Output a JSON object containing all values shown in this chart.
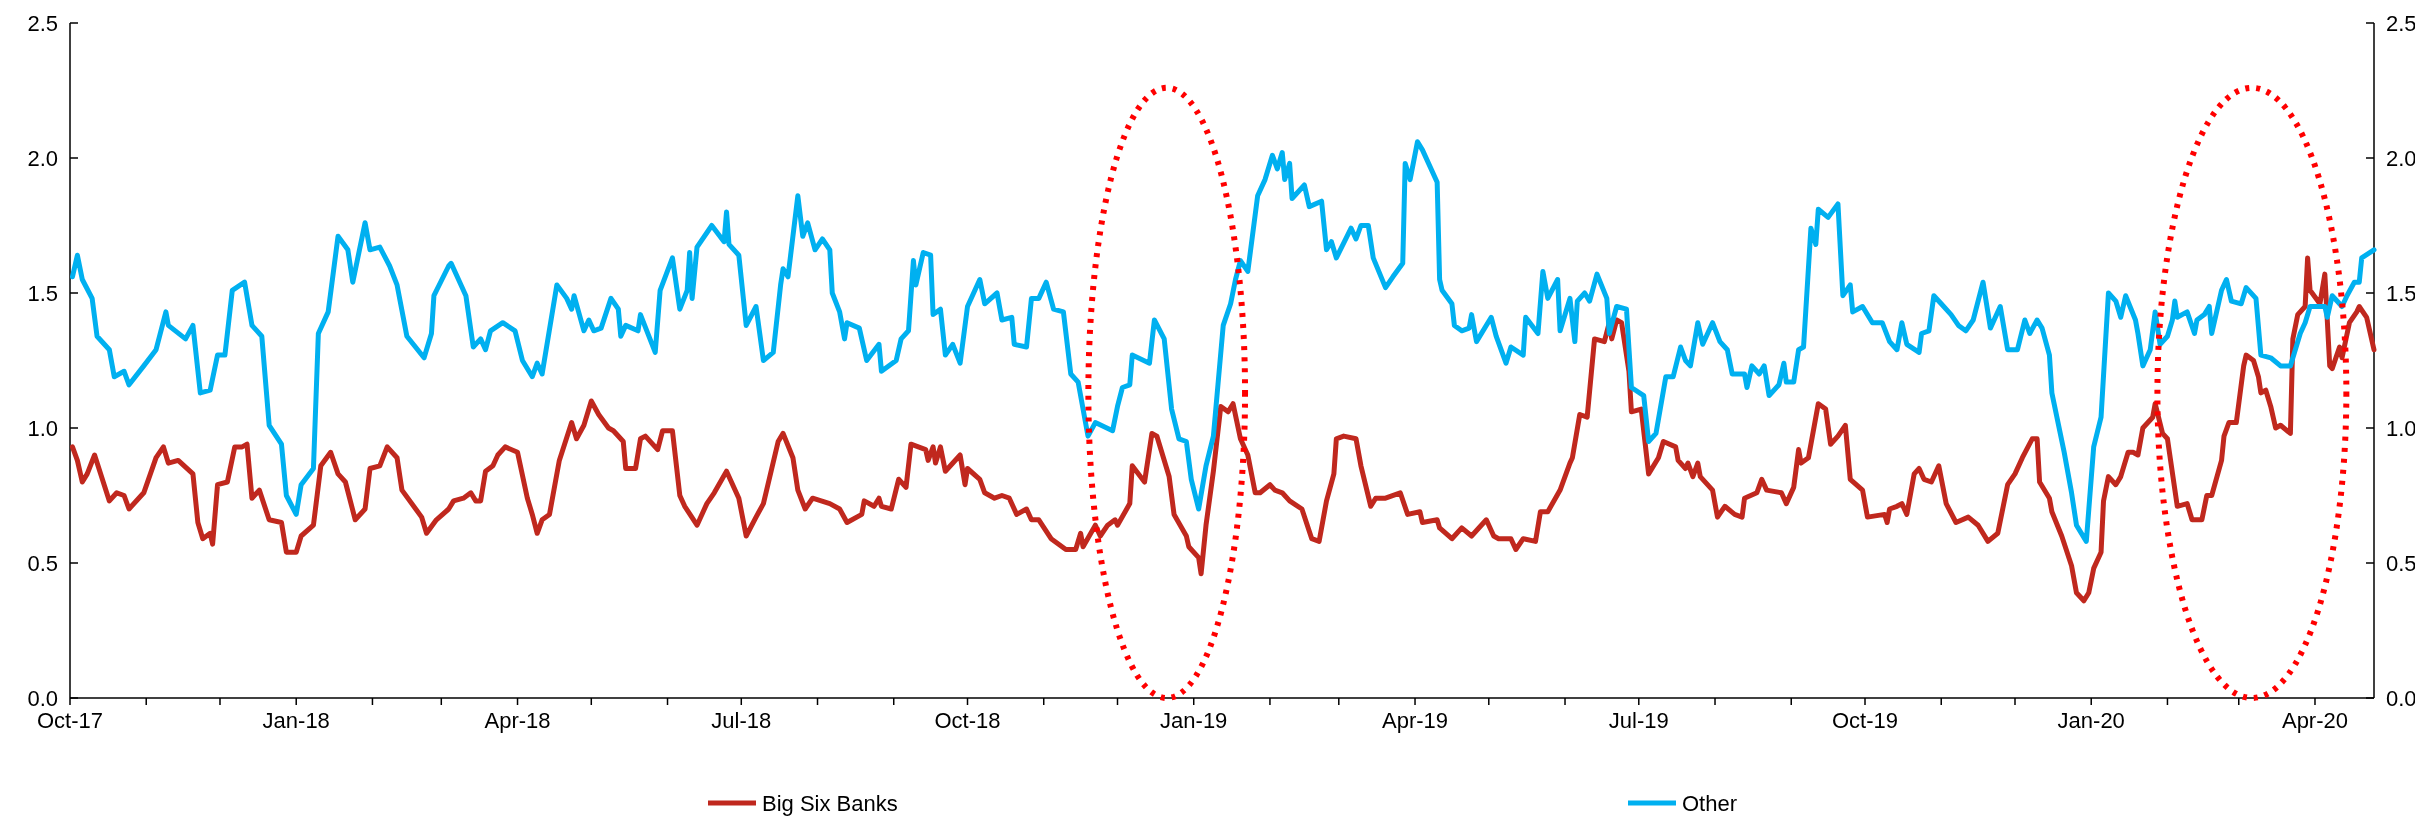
{
  "chart_data": {
    "type": "line",
    "legend": "bottom",
    "xlim": [
      "2017-10-01",
      "2020-04-25"
    ],
    "xticks": [
      {
        "value": "2017-10-01",
        "label": "Oct-17"
      },
      {
        "value": "2017-11-01",
        "label": null
      },
      {
        "value": "2017-12-01",
        "label": null
      },
      {
        "value": "2018-01-01",
        "label": "Jan-18"
      },
      {
        "value": "2018-02-01",
        "label": null
      },
      {
        "value": "2018-03-01",
        "label": null
      },
      {
        "value": "2018-04-01",
        "label": "Apr-18"
      },
      {
        "value": "2018-05-01",
        "label": null
      },
      {
        "value": "2018-06-01",
        "label": null
      },
      {
        "value": "2018-07-01",
        "label": "Jul-18"
      },
      {
        "value": "2018-08-01",
        "label": null
      },
      {
        "value": "2018-09-01",
        "label": null
      },
      {
        "value": "2018-10-01",
        "label": "Oct-18"
      },
      {
        "value": "2018-11-01",
        "label": null
      },
      {
        "value": "2018-12-01",
        "label": null
      },
      {
        "value": "2019-01-01",
        "label": "Jan-19"
      },
      {
        "value": "2019-02-01",
        "label": null
      },
      {
        "value": "2019-03-01",
        "label": null
      },
      {
        "value": "2019-04-01",
        "label": "Apr-19"
      },
      {
        "value": "2019-05-01",
        "label": null
      },
      {
        "value": "2019-06-01",
        "label": null
      },
      {
        "value": "2019-07-01",
        "label": "Jul-19"
      },
      {
        "value": "2019-08-01",
        "label": null
      },
      {
        "value": "2019-09-01",
        "label": null
      },
      {
        "value": "2019-10-01",
        "label": "Oct-19"
      },
      {
        "value": "2019-11-01",
        "label": null
      },
      {
        "value": "2019-12-01",
        "label": null
      },
      {
        "value": "2020-01-01",
        "label": "Jan-20"
      },
      {
        "value": "2020-02-01",
        "label": null
      },
      {
        "value": "2020-03-01",
        "label": null
      },
      {
        "value": "2020-04-01",
        "label": "Apr-20"
      }
    ],
    "ylim": [
      0,
      2.5
    ],
    "yticks": [
      {
        "value": 0,
        "label": "0.0"
      },
      {
        "value": 0.5,
        "label": "0.5"
      },
      {
        "value": 1,
        "label": "1.0"
      },
      {
        "value": 1.5,
        "label": "1.5"
      },
      {
        "value": 2,
        "label": "2.0"
      },
      {
        "value": 2.5,
        "label": "2.5"
      }
    ],
    "y2lim": [
      0,
      2.5
    ],
    "y2ticks": [
      {
        "value": 0,
        "label": "0.0"
      },
      {
        "value": 0.5,
        "label": "0.5"
      },
      {
        "value": 1,
        "label": "1.0"
      },
      {
        "value": 1.5,
        "label": "1.5"
      },
      {
        "value": 2,
        "label": "2.0"
      },
      {
        "value": 2.5,
        "label": "2.5"
      }
    ],
    "series": [
      {
        "name": "Big Six Banks",
        "color": "#c0281e",
        "x": [
          "2017-10-02",
          "2017-10-04",
          "2017-10-06",
          "2017-10-08",
          "2017-10-11",
          "2017-10-17",
          "2017-10-20",
          "2017-10-23",
          "2017-10-25",
          "2017-10-31",
          "2017-11-05",
          "2017-11-08",
          "2017-11-10",
          "2017-11-14",
          "2017-11-20",
          "2017-11-22",
          "2017-11-24",
          "2017-11-27",
          "2017-11-28",
          "2017-11-30",
          "2017-12-04",
          "2017-12-07",
          "2017-12-10",
          "2017-12-12",
          "2017-12-14",
          "2017-12-17",
          "2017-12-21",
          "2017-12-26",
          "2017-12-28",
          "2018-01-01",
          "2018-01-03",
          "2018-01-08",
          "2018-01-11",
          "2018-01-15",
          "2018-01-18",
          "2018-01-21",
          "2018-01-25",
          "2018-01-29",
          "2018-01-31",
          "2018-02-04",
          "2018-02-07",
          "2018-02-11",
          "2018-02-13",
          "2018-02-21",
          "2018-02-23",
          "2018-02-27",
          "2018-03-04",
          "2018-03-06",
          "2018-03-10",
          "2018-03-13",
          "2018-03-15",
          "2018-03-17",
          "2018-03-19",
          "2018-03-22",
          "2018-03-24",
          "2018-03-27",
          "2018-04-01",
          "2018-04-05",
          "2018-04-07",
          "2018-04-09",
          "2018-04-11",
          "2018-04-14",
          "2018-04-18",
          "2018-04-23",
          "2018-04-25",
          "2018-04-28",
          "2018-05-01",
          "2018-05-04",
          "2018-05-08",
          "2018-05-10",
          "2018-05-14",
          "2018-05-15",
          "2018-05-19",
          "2018-05-21",
          "2018-05-23",
          "2018-05-28",
          "2018-05-30",
          "2018-06-03",
          "2018-06-06",
          "2018-06-08",
          "2018-06-13",
          "2018-06-17",
          "2018-06-20",
          "2018-06-25",
          "2018-06-30",
          "2018-07-03",
          "2018-07-07",
          "2018-07-10",
          "2018-07-16",
          "2018-07-18",
          "2018-07-22",
          "2018-07-24",
          "2018-07-27",
          "2018-07-30",
          "2018-08-06",
          "2018-08-10",
          "2018-08-13",
          "2018-08-19",
          "2018-08-20",
          "2018-08-24",
          "2018-08-26",
          "2018-08-27",
          "2018-08-31",
          "2018-09-03",
          "2018-09-06",
          "2018-09-08",
          "2018-09-14",
          "2018-09-15",
          "2018-09-17",
          "2018-09-18",
          "2018-09-20",
          "2018-09-22",
          "2018-09-28",
          "2018-09-30",
          "2018-10-01",
          "2018-10-06",
          "2018-10-08",
          "2018-10-12",
          "2018-10-15",
          "2018-10-18",
          "2018-10-21",
          "2018-10-25",
          "2018-10-27",
          "2018-10-30",
          "2018-11-04",
          "2018-11-10",
          "2018-11-14",
          "2018-11-16",
          "2018-11-17",
          "2018-11-22",
          "2018-11-24",
          "2018-11-27",
          "2018-11-30",
          "2018-12-01",
          "2018-12-06",
          "2018-12-07",
          "2018-12-12",
          "2018-12-15",
          "2018-12-17",
          "2018-12-22",
          "2018-12-24",
          "2018-12-29",
          "2018-12-30",
          "2019-01-03",
          "2019-01-04",
          "2019-01-06",
          "2019-01-09",
          "2019-01-12",
          "2019-01-15",
          "2019-01-17",
          "2019-01-20",
          "2019-01-23",
          "2019-01-26",
          "2019-01-28",
          "2019-02-01",
          "2019-02-03",
          "2019-02-06",
          "2019-02-09",
          "2019-02-14",
          "2019-02-18",
          "2019-02-21",
          "2019-02-24",
          "2019-02-27",
          "2019-02-28",
          "2019-03-03",
          "2019-03-08",
          "2019-03-10",
          "2019-03-14",
          "2019-03-16",
          "2019-03-20",
          "2019-03-26",
          "2019-03-29",
          "2019-04-03",
          "2019-04-04",
          "2019-04-10",
          "2019-04-11",
          "2019-04-16",
          "2019-04-20",
          "2019-04-24",
          "2019-04-30",
          "2019-05-03",
          "2019-05-05",
          "2019-05-10",
          "2019-05-12",
          "2019-05-15",
          "2019-05-20",
          "2019-05-22",
          "2019-05-25",
          "2019-05-30",
          "2019-06-03",
          "2019-06-04",
          "2019-06-07",
          "2019-06-10",
          "2019-06-13",
          "2019-06-17",
          "2019-06-19",
          "2019-06-20",
          "2019-06-22",
          "2019-06-24",
          "2019-06-27",
          "2019-06-28",
          "2019-07-02",
          "2019-07-05",
          "2019-07-09",
          "2019-07-11",
          "2019-07-16",
          "2019-07-17",
          "2019-07-20",
          "2019-07-21",
          "2019-07-23",
          "2019-07-25",
          "2019-07-26",
          "2019-07-31",
          "2019-08-02",
          "2019-08-05",
          "2019-08-09",
          "2019-08-12",
          "2019-08-13",
          "2019-08-18",
          "2019-08-20",
          "2019-08-22",
          "2019-08-28",
          "2019-08-30",
          "2019-09-02",
          "2019-09-04",
          "2019-09-05",
          "2019-09-08",
          "2019-09-12",
          "2019-09-15",
          "2019-09-17",
          "2019-09-20",
          "2019-09-23",
          "2019-09-25",
          "2019-09-30",
          "2019-10-02",
          "2019-10-09",
          "2019-10-10",
          "2019-10-11",
          "2019-10-14",
          "2019-10-16",
          "2019-10-18",
          "2019-10-21",
          "2019-10-23",
          "2019-10-25",
          "2019-10-28",
          "2019-10-31",
          "2019-11-03",
          "2019-11-07",
          "2019-11-12",
          "2019-11-16",
          "2019-11-20",
          "2019-11-24",
          "2019-11-28",
          "2019-12-01",
          "2019-12-04",
          "2019-12-08",
          "2019-12-10",
          "2019-12-11",
          "2019-12-15",
          "2019-12-16",
          "2019-12-20",
          "2019-12-24",
          "2019-12-26",
          "2019-12-29",
          "2019-12-31",
          "2020-01-02",
          "2020-01-05",
          "2020-01-06",
          "2020-01-08",
          "2020-01-11",
          "2020-01-13",
          "2020-01-16",
          "2020-01-18",
          "2020-01-20",
          "2020-01-22",
          "2020-01-26",
          "2020-01-27",
          "2020-01-30",
          "2020-02-01",
          "2020-02-05",
          "2020-02-09",
          "2020-02-11",
          "2020-02-15",
          "2020-02-17",
          "2020-02-19",
          "2020-02-23",
          "2020-02-24",
          "2020-02-26",
          "2020-02-29",
          "2020-03-03",
          "2020-03-04",
          "2020-03-07",
          "2020-03-09",
          "2020-03-10",
          "2020-03-12",
          "2020-03-14",
          "2020-03-16",
          "2020-03-18",
          "2020-03-22",
          "2020-03-23",
          "2020-03-25",
          "2020-03-28",
          "2020-03-29",
          "2020-03-30",
          "2020-04-03",
          "2020-04-05",
          "2020-04-07",
          "2020-04-08",
          "2020-04-11",
          "2020-04-12",
          "2020-04-15",
          "2020-04-18",
          "2020-04-19",
          "2020-04-22",
          "2020-04-25"
        ],
        "values": [
          0.93,
          0.88,
          0.8,
          0.83,
          0.9,
          0.73,
          0.76,
          0.75,
          0.7,
          0.76,
          0.89,
          0.93,
          0.87,
          0.88,
          0.83,
          0.65,
          0.59,
          0.61,
          0.57,
          0.79,
          0.8,
          0.93,
          0.93,
          0.94,
          0.74,
          0.77,
          0.66,
          0.65,
          0.54,
          0.54,
          0.6,
          0.64,
          0.86,
          0.91,
          0.83,
          0.8,
          0.66,
          0.7,
          0.85,
          0.86,
          0.93,
          0.89,
          0.77,
          0.67,
          0.61,
          0.66,
          0.7,
          0.73,
          0.74,
          0.76,
          0.73,
          0.73,
          0.84,
          0.86,
          0.9,
          0.93,
          0.91,
          0.74,
          0.68,
          0.61,
          0.66,
          0.68,
          0.88,
          1.02,
          0.96,
          1.01,
          1.1,
          1.05,
          1.0,
          0.99,
          0.95,
          0.85,
          0.85,
          0.96,
          0.97,
          0.92,
          0.99,
          0.99,
          0.75,
          0.71,
          0.64,
          0.72,
          0.76,
          0.84,
          0.74,
          0.6,
          0.67,
          0.72,
          0.95,
          0.98,
          0.89,
          0.77,
          0.7,
          0.74,
          0.72,
          0.7,
          0.65,
          0.68,
          0.73,
          0.71,
          0.74,
          0.71,
          0.7,
          0.81,
          0.78,
          0.94,
          0.92,
          0.88,
          0.93,
          0.87,
          0.93,
          0.84,
          0.9,
          0.79,
          0.85,
          0.81,
          0.76,
          0.74,
          0.75,
          0.74,
          0.68,
          0.7,
          0.66,
          0.66,
          0.59,
          0.55,
          0.55,
          0.61,
          0.56,
          0.64,
          0.6,
          0.64,
          0.66,
          0.64,
          0.72,
          0.86,
          0.8,
          0.98,
          0.97,
          0.82,
          0.68,
          0.6,
          0.56,
          0.52,
          0.46,
          0.64,
          0.84,
          1.08,
          1.06,
          1.09,
          0.96,
          0.9,
          0.76,
          0.76,
          0.79,
          0.77,
          0.76,
          0.73,
          0.7,
          0.59,
          0.58,
          0.73,
          0.83,
          0.96,
          0.97,
          0.96,
          0.86,
          0.71,
          0.74,
          0.74,
          0.76,
          0.68,
          0.69,
          0.65,
          0.66,
          0.63,
          0.59,
          0.63,
          0.6,
          0.66,
          0.6,
          0.59,
          0.59,
          0.55,
          0.59,
          0.58,
          0.69,
          0.69,
          0.77,
          0.87,
          0.89,
          1.05,
          1.04,
          1.33,
          1.32,
          1.39,
          1.33,
          1.4,
          1.39,
          1.21,
          1.06,
          1.07,
          0.83,
          0.89,
          0.95,
          0.93,
          0.88,
          0.85,
          0.87,
          0.82,
          0.87,
          0.82,
          0.77,
          0.67,
          0.71,
          0.68,
          0.67,
          0.74,
          0.76,
          0.81,
          0.77,
          0.76,
          0.72,
          0.78,
          0.92,
          0.87,
          0.89,
          1.09,
          1.07,
          0.94,
          0.97,
          1.01,
          0.81,
          0.77,
          0.67,
          0.68,
          0.65,
          0.7,
          0.71,
          0.72,
          0.68,
          0.83,
          0.85,
          0.81,
          0.8,
          0.86,
          0.72,
          0.65,
          0.67,
          0.64,
          0.58,
          0.61,
          0.79,
          0.83,
          0.89,
          0.96,
          0.96,
          0.8,
          0.74,
          0.69,
          0.6,
          0.49,
          0.39,
          0.36,
          0.39,
          0.48,
          0.54,
          0.73,
          0.82,
          0.79,
          0.82,
          0.91,
          0.91,
          0.9,
          1.0,
          1.04,
          1.09,
          0.98,
          0.96,
          0.71,
          0.72,
          0.66,
          0.66,
          0.75,
          0.75,
          0.88,
          0.97,
          1.02,
          1.02,
          1.23,
          1.27,
          1.25,
          1.19,
          1.13,
          1.14,
          1.08,
          1.0,
          1.01,
          0.98,
          1.33,
          1.42,
          1.45,
          1.63,
          1.51,
          1.46,
          1.57,
          1.23,
          1.22,
          1.3,
          1.26,
          1.39,
          1.43,
          1.45,
          1.41,
          1.29
        ]
      },
      {
        "name": "Other",
        "color": "#00b0f0",
        "x": [
          "2017-10-02",
          "2017-10-04",
          "2017-10-06",
          "2017-10-10",
          "2017-10-12",
          "2017-10-17",
          "2017-10-19",
          "2017-10-23",
          "2017-10-25",
          "2017-10-31",
          "2017-11-05",
          "2017-11-09",
          "2017-11-10",
          "2017-11-17",
          "2017-11-20",
          "2017-11-23",
          "2017-11-27",
          "2017-11-30",
          "2017-12-03",
          "2017-12-06",
          "2017-12-11",
          "2017-12-14",
          "2017-12-18",
          "2017-12-21",
          "2017-12-26",
          "2017-12-28",
          "2018-01-01",
          "2018-01-03",
          "2018-01-08",
          "2018-01-10",
          "2018-01-14",
          "2018-01-18",
          "2018-01-22",
          "2018-01-24",
          "2018-01-29",
          "2018-01-31",
          "2018-02-04",
          "2018-02-08",
          "2018-02-11",
          "2018-02-15",
          "2018-02-22",
          "2018-02-25",
          "2018-02-26",
          "2018-03-04",
          "2018-03-05",
          "2018-03-11",
          "2018-03-14",
          "2018-03-17",
          "2018-03-19",
          "2018-03-21",
          "2018-03-26",
          "2018-03-31",
          "2018-04-03",
          "2018-04-07",
          "2018-04-09",
          "2018-04-11",
          "2018-04-17",
          "2018-04-21",
          "2018-04-23",
          "2018-04-24",
          "2018-04-28",
          "2018-04-30",
          "2018-05-02",
          "2018-05-05",
          "2018-05-09",
          "2018-05-12",
          "2018-05-13",
          "2018-05-15",
          "2018-05-20",
          "2018-05-21",
          "2018-05-27",
          "2018-05-29",
          "2018-06-03",
          "2018-06-06",
          "2018-06-09",
          "2018-06-10",
          "2018-06-11",
          "2018-06-13",
          "2018-06-19",
          "2018-06-24",
          "2018-06-25",
          "2018-06-26",
          "2018-06-30",
          "2018-07-03",
          "2018-07-07",
          "2018-07-10",
          "2018-07-14",
          "2018-07-17",
          "2018-07-18",
          "2018-07-20",
          "2018-07-24",
          "2018-07-26",
          "2018-07-28",
          "2018-07-31",
          "2018-08-03",
          "2018-08-06",
          "2018-08-07",
          "2018-08-10",
          "2018-08-12",
          "2018-08-13",
          "2018-08-18",
          "2018-08-21",
          "2018-08-26",
          "2018-08-27",
          "2018-09-02",
          "2018-09-04",
          "2018-09-07",
          "2018-09-09",
          "2018-09-10",
          "2018-09-13",
          "2018-09-16",
          "2018-09-17",
          "2018-09-20",
          "2018-09-22",
          "2018-09-25",
          "2018-09-28",
          "2018-10-01",
          "2018-10-06",
          "2018-10-08",
          "2018-10-13",
          "2018-10-15",
          "2018-10-19",
          "2018-10-20",
          "2018-10-25",
          "2018-10-27",
          "2018-10-30",
          "2018-11-02",
          "2018-11-05",
          "2018-11-09",
          "2018-11-12",
          "2018-11-15",
          "2018-11-19",
          "2018-11-22",
          "2018-11-29",
          "2018-12-01",
          "2018-12-03",
          "2018-12-06",
          "2018-12-07",
          "2018-12-14",
          "2018-12-16",
          "2018-12-20",
          "2018-12-23",
          "2018-12-26",
          "2018-12-29",
          "2018-12-31",
          "2019-01-03",
          "2019-01-06",
          "2019-01-09",
          "2019-01-13",
          "2019-01-16",
          "2019-01-18",
          "2019-01-20",
          "2019-01-23",
          "2019-01-27",
          "2019-01-30",
          "2019-02-02",
          "2019-02-04",
          "2019-02-06",
          "2019-02-07",
          "2019-02-09",
          "2019-02-10",
          "2019-02-15",
          "2019-02-17",
          "2019-02-22",
          "2019-02-24",
          "2019-02-26",
          "2019-02-28",
          "2019-03-06",
          "2019-03-08",
          "2019-03-10",
          "2019-03-13",
          "2019-03-15",
          "2019-03-20",
          "2019-03-23",
          "2019-03-27",
          "2019-03-28",
          "2019-03-30",
          "2019-04-02",
          "2019-04-04",
          "2019-04-10",
          "2019-04-11",
          "2019-04-12",
          "2019-04-16",
          "2019-04-17",
          "2019-04-20",
          "2019-04-23",
          "2019-04-24",
          "2019-04-26",
          "2019-05-02",
          "2019-05-04",
          "2019-05-08",
          "2019-05-10",
          "2019-05-15",
          "2019-05-16",
          "2019-05-21",
          "2019-05-23",
          "2019-05-25",
          "2019-05-29",
          "2019-05-30",
          "2019-06-03",
          "2019-06-05",
          "2019-06-06",
          "2019-06-09",
          "2019-06-11",
          "2019-06-14",
          "2019-06-18",
          "2019-06-19",
          "2019-06-22",
          "2019-06-26",
          "2019-06-28",
          "2019-07-03",
          "2019-07-05",
          "2019-07-08",
          "2019-07-12",
          "2019-07-15",
          "2019-07-18",
          "2019-07-20",
          "2019-07-22",
          "2019-07-25",
          "2019-07-27",
          "2019-07-31",
          "2019-08-03",
          "2019-08-06",
          "2019-08-08",
          "2019-08-13",
          "2019-08-14",
          "2019-08-16",
          "2019-08-19",
          "2019-08-21",
          "2019-08-23",
          "2019-08-27",
          "2019-08-29",
          "2019-08-30",
          "2019-09-02",
          "2019-09-04",
          "2019-09-06",
          "2019-09-09",
          "2019-09-11",
          "2019-09-12",
          "2019-09-16",
          "2019-09-20",
          "2019-09-22",
          "2019-09-25",
          "2019-09-26",
          "2019-09-30",
          "2019-10-04",
          "2019-10-08",
          "2019-10-11",
          "2019-10-14",
          "2019-10-16",
          "2019-10-18",
          "2019-10-23",
          "2019-10-24",
          "2019-10-27",
          "2019-10-29",
          "2019-11-01",
          "2019-11-05",
          "2019-11-08",
          "2019-11-11",
          "2019-11-14",
          "2019-11-18",
          "2019-11-21",
          "2019-11-25",
          "2019-11-28",
          "2019-12-02",
          "2019-12-05",
          "2019-12-07",
          "2019-12-10",
          "2019-12-12",
          "2019-12-15",
          "2019-12-16",
          "2019-12-21",
          "2019-12-24",
          "2019-12-26",
          "2019-12-30",
          "2020-01-02",
          "2020-01-05",
          "2020-01-08",
          "2020-01-11",
          "2020-01-13",
          "2020-01-15",
          "2020-01-19",
          "2020-01-20",
          "2020-01-22",
          "2020-01-25",
          "2020-01-27",
          "2020-01-29",
          "2020-02-01",
          "2020-02-03",
          "2020-02-04",
          "2020-02-05",
          "2020-02-09",
          "2020-02-12",
          "2020-02-13",
          "2020-02-16",
          "2020-02-18",
          "2020-02-19",
          "2020-02-23",
          "2020-02-25",
          "2020-02-27",
          "2020-03-02",
          "2020-03-04",
          "2020-03-08",
          "2020-03-10",
          "2020-03-14",
          "2020-03-18",
          "2020-03-22",
          "2020-03-26",
          "2020-03-28",
          "2020-03-30",
          "2020-04-05",
          "2020-04-06",
          "2020-04-08",
          "2020-04-11",
          "2020-04-12",
          "2020-04-14",
          "2020-04-17",
          "2020-04-19",
          "2020-04-20",
          "2020-04-25"
        ],
        "values": [
          1.56,
          1.64,
          1.55,
          1.48,
          1.34,
          1.29,
          1.19,
          1.21,
          1.16,
          1.23,
          1.29,
          1.43,
          1.38,
          1.33,
          1.38,
          1.13,
          1.14,
          1.27,
          1.27,
          1.51,
          1.54,
          1.38,
          1.34,
          1.01,
          0.94,
          0.75,
          0.68,
          0.79,
          0.85,
          1.35,
          1.43,
          1.71,
          1.66,
          1.54,
          1.76,
          1.66,
          1.67,
          1.6,
          1.53,
          1.34,
          1.26,
          1.35,
          1.49,
          1.6,
          1.61,
          1.49,
          1.3,
          1.33,
          1.29,
          1.36,
          1.39,
          1.36,
          1.25,
          1.19,
          1.24,
          1.2,
          1.53,
          1.48,
          1.44,
          1.49,
          1.36,
          1.4,
          1.36,
          1.37,
          1.48,
          1.44,
          1.34,
          1.38,
          1.36,
          1.42,
          1.28,
          1.51,
          1.63,
          1.44,
          1.51,
          1.65,
          1.48,
          1.67,
          1.75,
          1.69,
          1.8,
          1.68,
          1.64,
          1.38,
          1.45,
          1.25,
          1.28,
          1.53,
          1.59,
          1.56,
          1.86,
          1.71,
          1.76,
          1.66,
          1.7,
          1.66,
          1.5,
          1.43,
          1.33,
          1.39,
          1.37,
          1.25,
          1.31,
          1.21,
          1.25,
          1.33,
          1.36,
          1.62,
          1.53,
          1.65,
          1.64,
          1.42,
          1.44,
          1.27,
          1.31,
          1.24,
          1.45,
          1.55,
          1.46,
          1.5,
          1.4,
          1.41,
          1.31,
          1.3,
          1.48,
          1.48,
          1.54,
          1.44,
          1.43,
          1.2,
          1.17,
          0.97,
          1.02,
          0.99,
          1.08,
          1.15,
          1.16,
          1.27,
          1.24,
          1.4,
          1.33,
          1.07,
          0.96,
          0.95,
          0.81,
          0.7,
          0.86,
          0.97,
          1.38,
          1.46,
          1.55,
          1.62,
          1.58,
          1.86,
          1.92,
          2.01,
          1.96,
          2.02,
          1.92,
          1.98,
          1.85,
          1.9,
          1.82,
          1.84,
          1.66,
          1.69,
          1.63,
          1.74,
          1.7,
          1.75,
          1.75,
          1.63,
          1.52,
          1.56,
          1.61,
          1.98,
          1.92,
          2.06,
          2.03,
          1.91,
          1.55,
          1.51,
          1.46,
          1.38,
          1.36,
          1.37,
          1.42,
          1.32,
          1.41,
          1.34,
          1.24,
          1.3,
          1.27,
          1.41,
          1.35,
          1.58,
          1.48,
          1.55,
          1.36,
          1.48,
          1.32,
          1.47,
          1.5,
          1.47,
          1.57,
          1.48,
          1.35,
          1.45,
          1.44,
          1.15,
          1.12,
          0.95,
          0.98,
          1.19,
          1.19,
          1.3,
          1.25,
          1.23,
          1.39,
          1.31,
          1.39,
          1.32,
          1.29,
          1.2,
          1.2,
          1.15,
          1.23,
          1.2,
          1.23,
          1.12,
          1.16,
          1.24,
          1.17,
          1.17,
          1.29,
          1.3,
          1.74,
          1.68,
          1.81,
          1.78,
          1.83,
          1.49,
          1.53,
          1.43,
          1.45,
          1.39,
          1.39,
          1.32,
          1.29,
          1.39,
          1.31,
          1.28,
          1.35,
          1.36,
          1.49,
          1.46,
          1.42,
          1.38,
          1.36,
          1.4,
          1.54,
          1.37,
          1.45,
          1.29,
          1.29,
          1.4,
          1.35,
          1.4,
          1.37,
          1.27,
          1.13,
          0.91,
          0.76,
          0.64,
          0.58,
          0.93,
          1.04,
          1.5,
          1.47,
          1.41,
          1.49,
          1.4,
          1.35,
          1.23,
          1.29,
          1.43,
          1.31,
          1.34,
          1.4,
          1.47,
          1.41,
          1.43,
          1.35,
          1.4,
          1.42,
          1.45,
          1.35,
          1.51,
          1.55,
          1.47,
          1.46,
          1.52,
          1.48,
          1.27,
          1.26,
          1.23,
          1.23,
          1.35,
          1.39,
          1.45,
          1.45,
          1.41,
          1.49,
          1.46,
          1.45,
          1.49,
          1.54,
          1.54,
          1.63,
          1.66
        ]
      }
    ]
  }
}
